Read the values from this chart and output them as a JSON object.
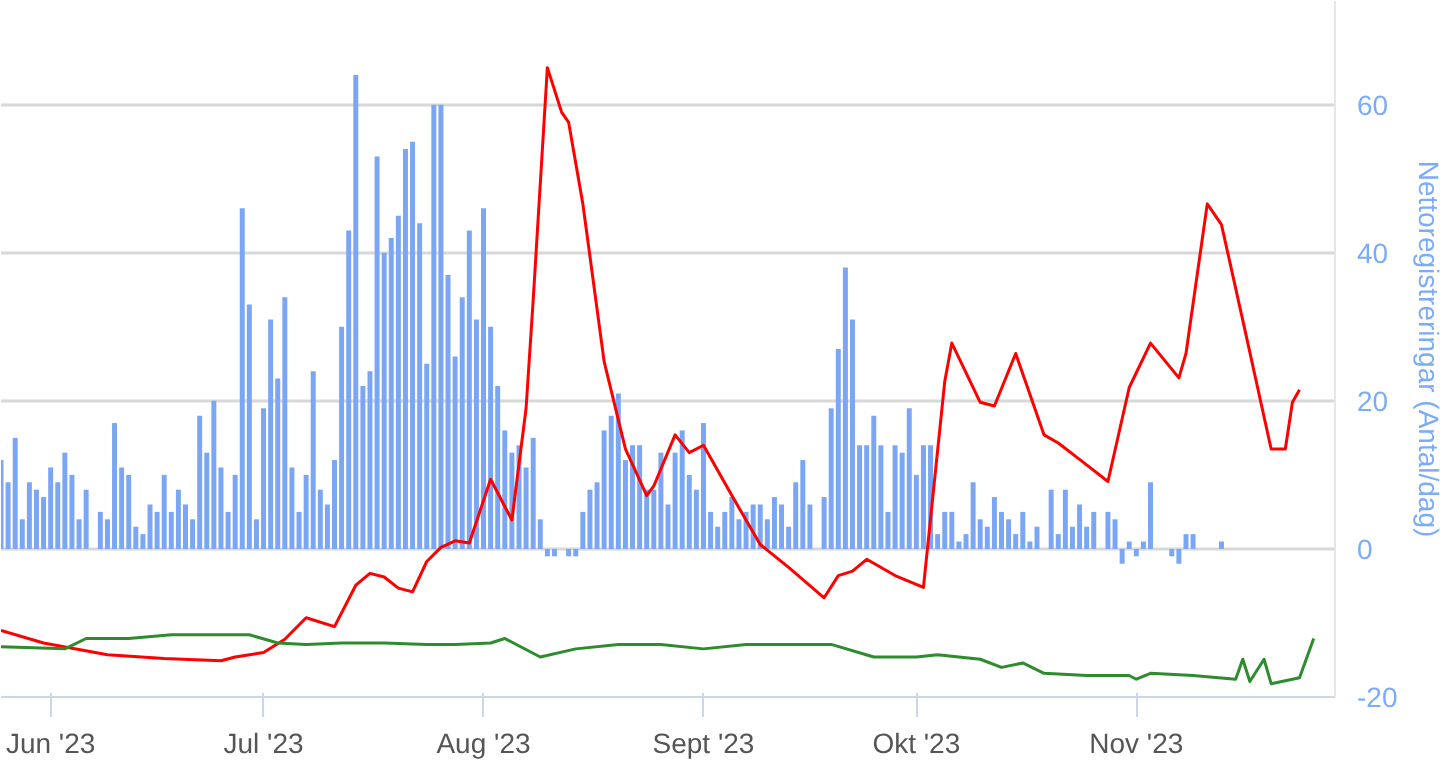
{
  "chart_data": {
    "type": "bar",
    "ylabel": "Nettoregistreringar (Antal/dag)",
    "xlim": [
      "2023-05-25",
      "2023-11-29"
    ],
    "xticks": [
      {
        "value": "2023-06-01",
        "label": "Jun '23"
      },
      {
        "value": "2023-07-01",
        "label": "Jul '23"
      },
      {
        "value": "2023-08-01",
        "label": "Aug '23"
      },
      {
        "value": "2023-09-01",
        "label": "Sept '23"
      },
      {
        "value": "2023-10-01",
        "label": "Okt '23"
      },
      {
        "value": "2023-11-01",
        "label": "Nov '23"
      }
    ],
    "ylim": [
      -20,
      74
    ],
    "yticks": [
      -20,
      0,
      20,
      40,
      60
    ],
    "grid": "y",
    "series": [
      {
        "color": "#7aa6f5",
        "x": [
          "2023-05-25",
          "2023-05-26",
          "2023-05-27",
          "2023-05-28",
          "2023-05-29",
          "2023-05-30",
          "2023-05-31",
          "2023-06-01",
          "2023-06-02",
          "2023-06-03",
          "2023-06-04",
          "2023-06-05",
          "2023-06-06",
          "2023-06-07",
          "2023-06-08",
          "2023-06-09",
          "2023-06-10",
          "2023-06-11",
          "2023-06-12",
          "2023-06-13",
          "2023-06-14",
          "2023-06-15",
          "2023-06-16",
          "2023-06-17",
          "2023-06-18",
          "2023-06-19",
          "2023-06-20",
          "2023-06-21",
          "2023-06-22",
          "2023-06-23",
          "2023-06-24",
          "2023-06-25",
          "2023-06-26",
          "2023-06-27",
          "2023-06-28",
          "2023-06-29",
          "2023-06-30",
          "2023-07-01",
          "2023-07-02",
          "2023-07-03",
          "2023-07-04",
          "2023-07-05",
          "2023-07-06",
          "2023-07-07",
          "2023-07-08",
          "2023-07-09",
          "2023-07-10",
          "2023-07-11",
          "2023-07-12",
          "2023-07-13",
          "2023-07-14",
          "2023-07-15",
          "2023-07-16",
          "2023-07-17",
          "2023-07-18",
          "2023-07-19",
          "2023-07-20",
          "2023-07-21",
          "2023-07-22",
          "2023-07-23",
          "2023-07-24",
          "2023-07-25",
          "2023-07-26",
          "2023-07-27",
          "2023-07-28",
          "2023-07-29",
          "2023-07-30",
          "2023-07-31",
          "2023-08-01",
          "2023-08-02",
          "2023-08-03",
          "2023-08-04",
          "2023-08-05",
          "2023-08-06",
          "2023-08-07",
          "2023-08-08",
          "2023-08-09",
          "2023-08-10",
          "2023-08-11",
          "2023-08-12",
          "2023-08-13",
          "2023-08-14",
          "2023-08-15",
          "2023-08-16",
          "2023-08-17",
          "2023-08-18",
          "2023-08-19",
          "2023-08-20",
          "2023-08-21",
          "2023-08-22",
          "2023-08-23",
          "2023-08-24",
          "2023-08-25",
          "2023-08-26",
          "2023-08-27",
          "2023-08-28",
          "2023-08-29",
          "2023-08-30",
          "2023-08-31",
          "2023-09-01",
          "2023-09-02",
          "2023-09-03",
          "2023-09-04",
          "2023-09-05",
          "2023-09-06",
          "2023-09-07",
          "2023-09-08",
          "2023-09-09",
          "2023-09-10",
          "2023-09-11",
          "2023-09-12",
          "2023-09-13",
          "2023-09-14",
          "2023-09-15",
          "2023-09-16",
          "2023-09-17",
          "2023-09-18",
          "2023-09-19",
          "2023-09-20",
          "2023-09-21",
          "2023-09-22",
          "2023-09-23",
          "2023-09-24",
          "2023-09-25",
          "2023-09-26",
          "2023-09-27",
          "2023-09-28",
          "2023-09-29",
          "2023-09-30",
          "2023-10-01",
          "2023-10-02",
          "2023-10-03",
          "2023-10-04",
          "2023-10-05",
          "2023-10-06",
          "2023-10-07",
          "2023-10-08",
          "2023-10-09",
          "2023-10-10",
          "2023-10-11",
          "2023-10-12",
          "2023-10-13",
          "2023-10-14",
          "2023-10-15",
          "2023-10-16",
          "2023-10-17",
          "2023-10-18",
          "2023-10-19",
          "2023-10-20",
          "2023-10-21",
          "2023-10-22",
          "2023-10-23",
          "2023-10-24",
          "2023-10-25",
          "2023-10-26",
          "2023-10-27",
          "2023-10-28",
          "2023-10-29",
          "2023-10-30",
          "2023-10-31",
          "2023-11-01",
          "2023-11-02",
          "2023-11-03",
          "2023-11-04",
          "2023-11-05",
          "2023-11-06",
          "2023-11-07",
          "2023-11-08",
          "2023-11-09",
          "2023-11-10",
          "2023-11-11",
          "2023-11-12",
          "2023-11-13"
        ],
        "values": [
          12,
          9,
          15,
          4,
          9,
          8,
          7,
          11,
          9,
          13,
          10,
          4,
          8,
          0,
          5,
          4,
          17,
          11,
          10,
          3,
          2,
          6,
          5,
          10,
          5,
          8,
          6,
          4,
          18,
          13,
          20,
          11,
          5,
          10,
          46,
          33,
          4,
          19,
          31,
          23,
          34,
          11,
          5,
          10,
          24,
          8,
          6,
          12,
          30,
          43,
          64,
          22,
          24,
          53,
          40,
          42,
          45,
          54,
          55,
          44,
          25,
          60,
          60,
          37,
          26,
          34,
          43,
          31,
          46,
          30,
          22,
          16,
          13,
          14,
          11,
          15,
          4,
          -1,
          -1,
          0,
          -1,
          -1,
          5,
          8,
          9,
          16,
          18,
          21,
          12,
          14,
          14,
          8,
          8,
          13,
          6,
          13,
          16,
          10,
          8,
          17,
          5,
          3,
          5,
          7,
          4,
          5,
          6,
          6,
          4,
          7,
          6,
          3,
          9,
          12,
          6,
          0,
          7,
          19,
          27,
          38,
          31,
          14,
          14,
          18,
          14,
          5,
          14,
          13,
          19,
          10,
          14,
          14,
          2,
          5,
          5,
          1,
          2,
          9,
          4,
          3,
          7,
          5,
          4,
          2,
          5,
          1,
          3,
          0,
          8,
          2,
          8,
          3,
          6,
          3,
          5,
          0,
          5,
          4,
          -2,
          1,
          -1,
          1,
          9,
          0,
          0,
          -1,
          -2,
          2,
          2,
          0,
          0,
          0,
          1
        ]
      },
      {
        "type": "line",
        "color": "#ff0000",
        "x": [
          "2023-05-25",
          "2023-05-31",
          "2023-06-09",
          "2023-06-17",
          "2023-06-25",
          "2023-06-27",
          "2023-07-01",
          "2023-07-04",
          "2023-07-07",
          "2023-07-11",
          "2023-07-14",
          "2023-07-16",
          "2023-07-18",
          "2023-07-20",
          "2023-07-22",
          "2023-07-24",
          "2023-07-26",
          "2023-07-28",
          "2023-07-30",
          "2023-08-02",
          "2023-08-05",
          "2023-08-07",
          "2023-08-08",
          "2023-08-10",
          "2023-08-12",
          "2023-08-13",
          "2023-08-15",
          "2023-08-18",
          "2023-08-21",
          "2023-08-24",
          "2023-08-25",
          "2023-08-28",
          "2023-08-30",
          "2023-09-01",
          "2023-09-05",
          "2023-09-09",
          "2023-09-13",
          "2023-09-18",
          "2023-09-20",
          "2023-09-22",
          "2023-09-24",
          "2023-09-28",
          "2023-10-02",
          "2023-10-05",
          "2023-10-06",
          "2023-10-10",
          "2023-10-12",
          "2023-10-15",
          "2023-10-19",
          "2023-10-21",
          "2023-10-24",
          "2023-10-28",
          "2023-10-31",
          "2023-11-03",
          "2023-11-07",
          "2023-11-08",
          "2023-11-11",
          "2023-11-13",
          "2023-11-16",
          "2023-11-20",
          "2023-11-22",
          "2023-11-23",
          "2023-11-24"
        ],
        "values": [
          -11,
          -12.7,
          -14.3,
          -14.8,
          -15.1,
          -14.6,
          -14,
          -12.2,
          -9.3,
          -10.5,
          -4.9,
          -3.3,
          -3.8,
          -5.3,
          -5.8,
          -1.7,
          0.2,
          1.1,
          0.8,
          9.4,
          3.9,
          19,
          33.6,
          65,
          59,
          57.6,
          46.6,
          25.3,
          13.5,
          7.2,
          8.5,
          15.4,
          13,
          14,
          7.2,
          0.6,
          -2.5,
          -6.6,
          -3.6,
          -3,
          -1.4,
          -3.6,
          -5.2,
          22.6,
          27.8,
          19.8,
          19.3,
          26.4,
          15.4,
          14.3,
          12.1,
          9.1,
          21.8,
          27.8,
          23.1,
          26.4,
          46.6,
          43.8,
          30.9,
          13.5,
          13.5,
          19.8,
          21.5
        ]
      },
      {
        "type": "line",
        "color": "#2e8b2e",
        "x": [
          "2023-05-25",
          "2023-06-03",
          "2023-06-06",
          "2023-06-12",
          "2023-06-18",
          "2023-06-24",
          "2023-06-29",
          "2023-07-03",
          "2023-07-07",
          "2023-07-12",
          "2023-07-18",
          "2023-07-24",
          "2023-07-28",
          "2023-08-02",
          "2023-08-04",
          "2023-08-09",
          "2023-08-14",
          "2023-08-20",
          "2023-08-26",
          "2023-09-01",
          "2023-09-07",
          "2023-09-13",
          "2023-09-19",
          "2023-09-25",
          "2023-10-01",
          "2023-10-04",
          "2023-10-10",
          "2023-10-13",
          "2023-10-16",
          "2023-10-19",
          "2023-10-25",
          "2023-10-31",
          "2023-11-01",
          "2023-11-03",
          "2023-11-09",
          "2023-11-15",
          "2023-11-16",
          "2023-11-17",
          "2023-11-19",
          "2023-11-20",
          "2023-11-24",
          "2023-11-26"
        ],
        "values": [
          -13.2,
          -13.5,
          -12.1,
          -12.1,
          -11.6,
          -11.6,
          -11.6,
          -12.7,
          -12.9,
          -12.7,
          -12.7,
          -12.9,
          -12.9,
          -12.7,
          -12.1,
          -14.6,
          -13.5,
          -12.9,
          -12.9,
          -13.5,
          -12.9,
          -12.9,
          -12.9,
          -14.6,
          -14.6,
          -14.3,
          -14.9,
          -16,
          -15.4,
          -16.8,
          -17.1,
          -17.1,
          -17.6,
          -16.8,
          -17.1,
          -17.6,
          -14.9,
          -17.9,
          -14.9,
          -18.2,
          -17.4,
          -12.1
        ]
      }
    ]
  }
}
